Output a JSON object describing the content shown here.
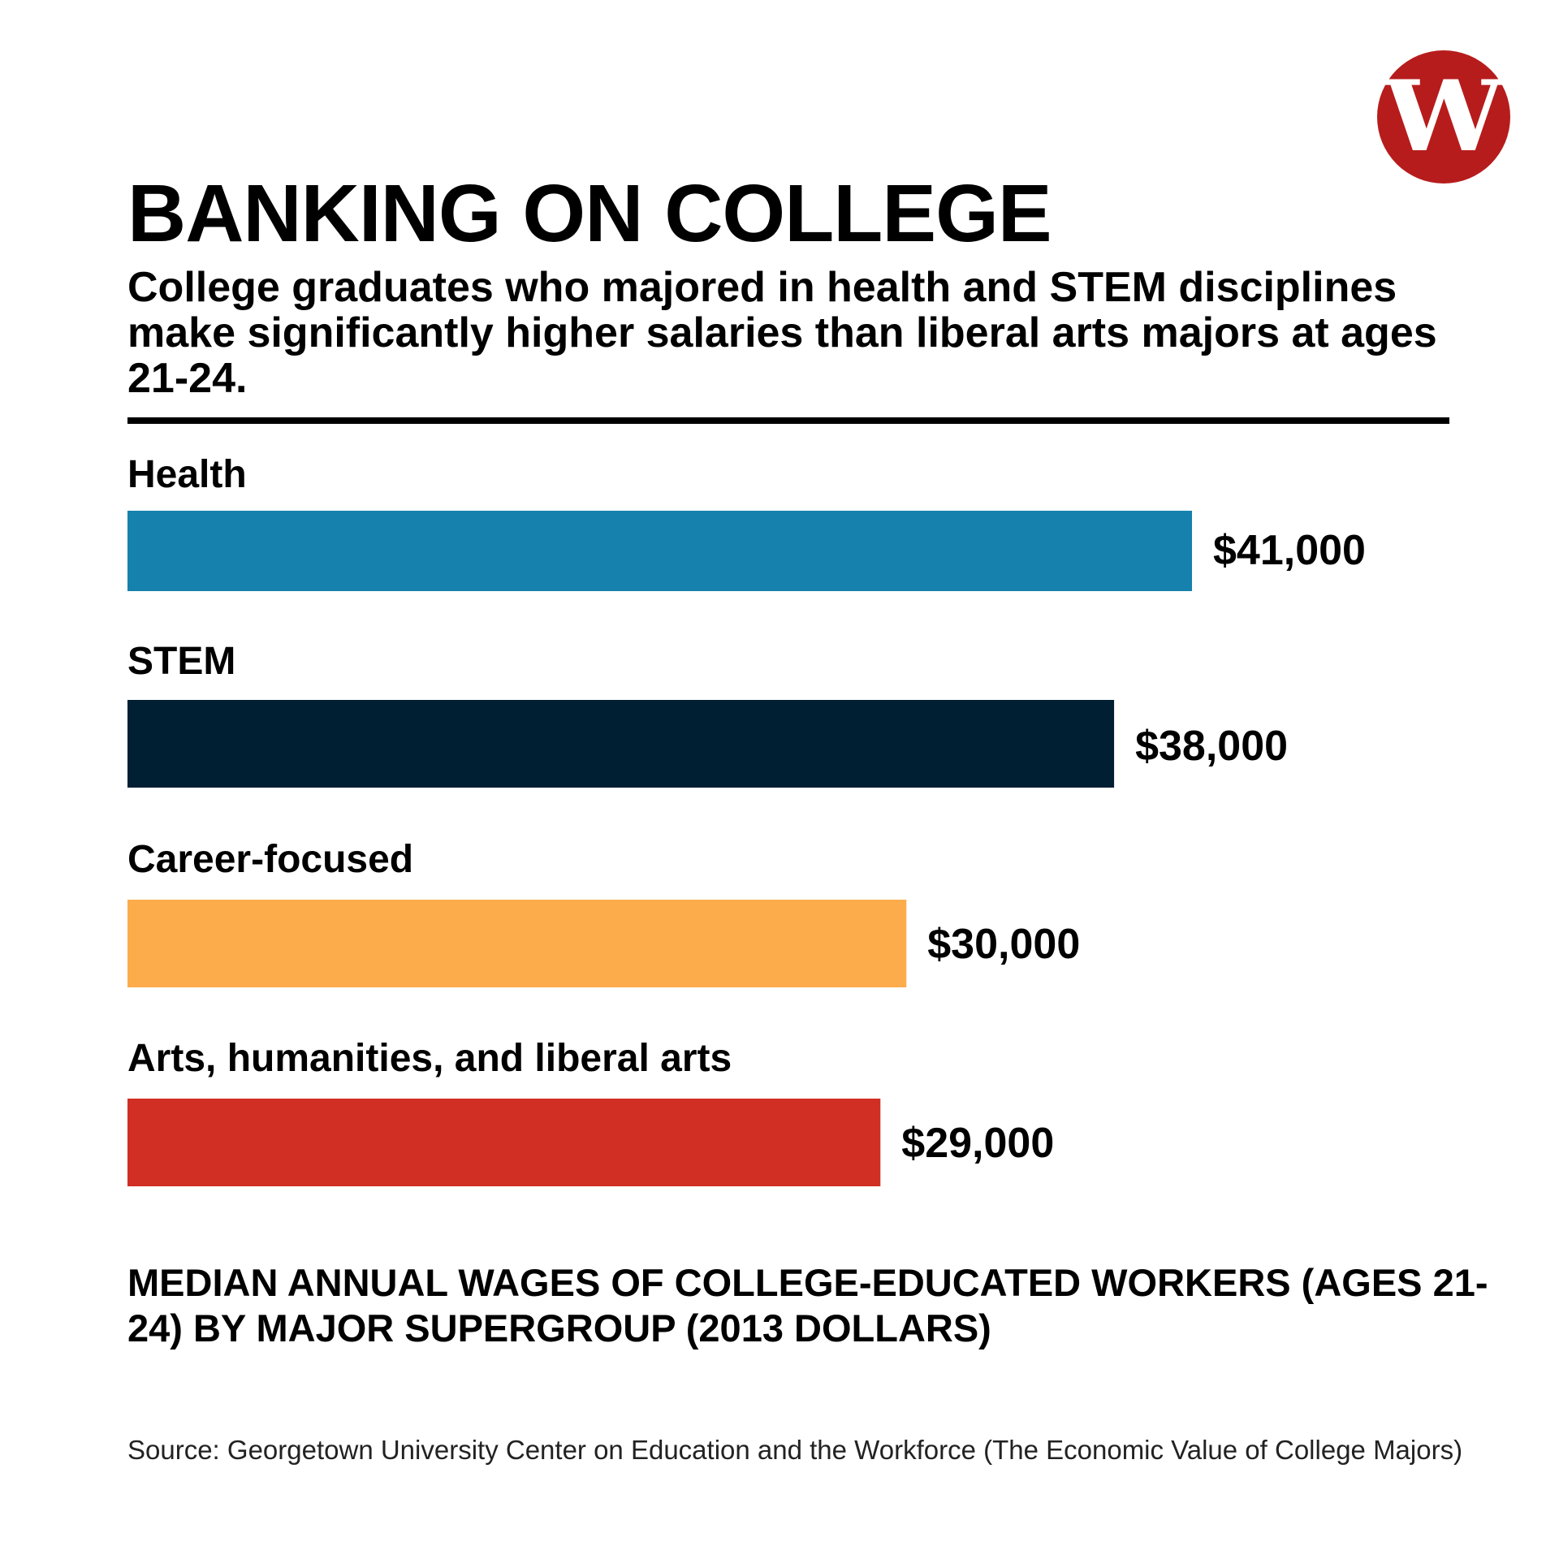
{
  "logo": {
    "letter": "W",
    "color": "#b71c1c"
  },
  "chart_data": {
    "type": "bar",
    "orientation": "horizontal",
    "title": "BANKING ON COLLEGE",
    "subtitle": "College graduates who majored in health and STEM disciplines make significantly higher salaries than liberal arts majors at ages 21-24.",
    "caption": "MEDIAN ANNUAL WAGES OF COLLEGE-EDUCATED WORKERS (AGES 21-24) BY MAJOR SUPERGROUP (2013 DOLLARS)",
    "categories": [
      "Health",
      "STEM",
      "Career-focused",
      "Arts, humanities, and liberal arts"
    ],
    "values": [
      41000,
      38000,
      30000,
      29000
    ],
    "value_labels": [
      "$41,000",
      "$38,000",
      "$30,000",
      "$29,000"
    ],
    "colors": [
      "#1681ad",
      "#001f33",
      "#fcac4b",
      "#d12e24"
    ],
    "xlim": [
      0,
      41000
    ],
    "grid": false,
    "legend": "none"
  },
  "source": "Source: Georgetown University Center on Education and the Workforce (The Economic Value of College Majors)"
}
